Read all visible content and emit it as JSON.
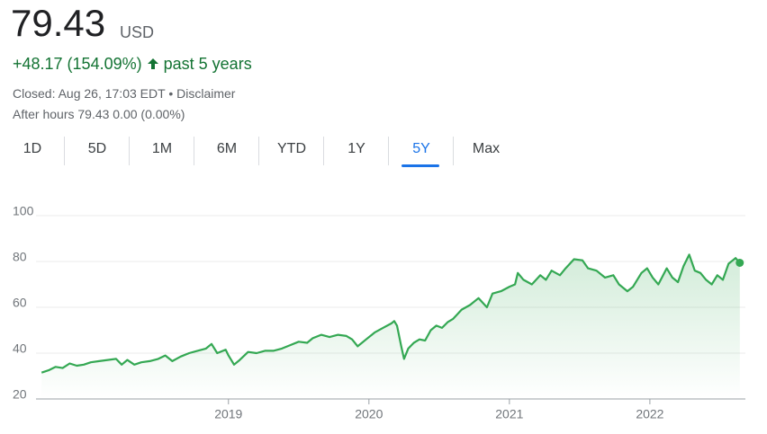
{
  "header": {
    "price": "79.43",
    "currency": "USD",
    "change": "+48.17 (154.09%)",
    "period": "past 5 years",
    "closed": "Closed: Aug 26, 17:03 EDT",
    "separator": "•",
    "disclaimer": "Disclaimer",
    "after_hours": "After hours 79.43 0.00 (0.00%)"
  },
  "tabs": [
    "1D",
    "5D",
    "1M",
    "6M",
    "YTD",
    "1Y",
    "5Y",
    "Max"
  ],
  "selected_tab": "5Y",
  "chart_data": {
    "type": "line",
    "x": [
      2017.67,
      2017.72,
      2017.77,
      2017.82,
      2017.87,
      2017.92,
      2017.97,
      2018.02,
      2018.08,
      2018.14,
      2018.2,
      2018.24,
      2018.28,
      2018.33,
      2018.38,
      2018.44,
      2018.5,
      2018.55,
      2018.6,
      2018.66,
      2018.72,
      2018.78,
      2018.84,
      2018.88,
      2018.92,
      2018.98,
      2019.0,
      2019.04,
      2019.08,
      2019.14,
      2019.2,
      2019.26,
      2019.32,
      2019.38,
      2019.44,
      2019.5,
      2019.56,
      2019.6,
      2019.66,
      2019.72,
      2019.78,
      2019.84,
      2019.88,
      2019.92,
      2019.98,
      2020.04,
      2020.1,
      2020.16,
      2020.18,
      2020.2,
      2020.23,
      2020.25,
      2020.28,
      2020.32,
      2020.36,
      2020.4,
      2020.44,
      2020.48,
      2020.52,
      2020.56,
      2020.6,
      2020.66,
      2020.72,
      2020.78,
      2020.84,
      2020.88,
      2020.94,
      2021.0,
      2021.04,
      2021.06,
      2021.1,
      2021.16,
      2021.22,
      2021.26,
      2021.3,
      2021.36,
      2021.4,
      2021.46,
      2021.52,
      2021.56,
      2021.62,
      2021.68,
      2021.74,
      2021.78,
      2021.84,
      2021.88,
      2021.94,
      2021.98,
      2022.02,
      2022.06,
      2022.12,
      2022.16,
      2022.2,
      2022.24,
      2022.28,
      2022.32,
      2022.36,
      2022.4,
      2022.44,
      2022.48,
      2022.52,
      2022.56,
      2022.61,
      2022.64
    ],
    "series": [
      {
        "color": "#34a853",
        "values": [
          31.5,
          32.5,
          34,
          33.5,
          35.5,
          34.5,
          35,
          36,
          36.5,
          37,
          37.5,
          35,
          37,
          35,
          36,
          36.5,
          37.5,
          39,
          36.5,
          38.5,
          40,
          41,
          42,
          44,
          40,
          41.5,
          39,
          35,
          37,
          40.5,
          40,
          41,
          41,
          42,
          43.5,
          45,
          44.5,
          46.5,
          48,
          47,
          48,
          47.5,
          46,
          43,
          46,
          49,
          51,
          53,
          54,
          52,
          43,
          37.5,
          42,
          44.5,
          46,
          45.5,
          50,
          52,
          51,
          53.5,
          55,
          59,
          61,
          64,
          60,
          66,
          67,
          69,
          70,
          75,
          72,
          70,
          74,
          72,
          76,
          74,
          77,
          81,
          80.5,
          77,
          76,
          73,
          74,
          70,
          67,
          69,
          75,
          77,
          73,
          70,
          77,
          73,
          71,
          78,
          83,
          76,
          75,
          72,
          70,
          74,
          72,
          79,
          81.5,
          79.43
        ]
      }
    ],
    "xlim": [
      2017.63,
      2022.68
    ],
    "xticks": [
      2019,
      2020,
      2021,
      2022
    ],
    "ylim": [
      20,
      100
    ],
    "yticks": [
      20,
      40,
      60,
      80,
      100
    ],
    "grid": true
  }
}
